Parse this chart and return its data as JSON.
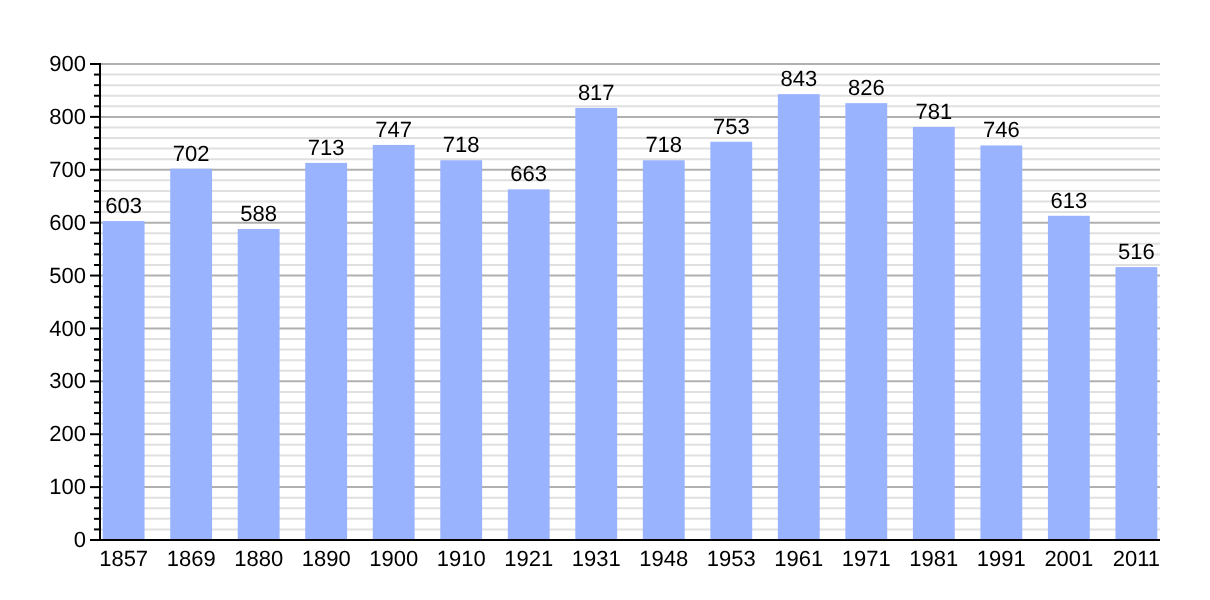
{
  "chart_data": {
    "type": "bar",
    "categories": [
      "1857",
      "1869",
      "1880",
      "1890",
      "1900",
      "1910",
      "1921",
      "1931",
      "1948",
      "1953",
      "1961",
      "1971",
      "1981",
      "1991",
      "2001",
      "2011"
    ],
    "values": [
      603,
      702,
      588,
      713,
      747,
      718,
      663,
      817,
      718,
      753,
      843,
      826,
      781,
      746,
      613,
      516
    ],
    "color": "#99b3ff",
    "data_labels": true,
    "grid": "y",
    "ylim": [
      0,
      900
    ],
    "yticks": [
      0,
      {
        "value": 20,
        "label": null
      },
      {
        "value": 40,
        "label": null
      },
      {
        "value": 60,
        "label": null
      },
      {
        "value": 80,
        "label": null
      },
      100,
      {
        "value": 120,
        "label": null
      },
      {
        "value": 140,
        "label": null
      },
      {
        "value": 160,
        "label": null
      },
      {
        "value": 180,
        "label": null
      },
      200,
      {
        "value": 220,
        "label": null
      },
      {
        "value": 240,
        "label": null
      },
      {
        "value": 260,
        "label": null
      },
      {
        "value": 280,
        "label": null
      },
      300,
      {
        "value": 320,
        "label": null
      },
      {
        "value": 340,
        "label": null
      },
      {
        "value": 360,
        "label": null
      },
      {
        "value": 380,
        "label": null
      },
      400,
      {
        "value": 420,
        "label": null
      },
      {
        "value": 440,
        "label": null
      },
      {
        "value": 460,
        "label": null
      },
      {
        "value": 480,
        "label": null
      },
      500,
      {
        "value": 520,
        "label": null
      },
      {
        "value": 540,
        "label": null
      },
      {
        "value": 560,
        "label": null
      },
      {
        "value": 580,
        "label": null
      },
      600,
      {
        "value": 620,
        "label": null
      },
      {
        "value": 640,
        "label": null
      },
      {
        "value": 660,
        "label": null
      },
      {
        "value": 680,
        "label": null
      },
      700,
      {
        "value": 720,
        "label": null
      },
      {
        "value": 740,
        "label": null
      },
      {
        "value": 760,
        "label": null
      },
      {
        "value": 780,
        "label": null
      },
      800,
      {
        "value": 820,
        "label": null
      },
      {
        "value": 840,
        "label": null
      },
      {
        "value": 860,
        "label": null
      },
      {
        "value": 880,
        "label": null
      },
      900
    ]
  }
}
